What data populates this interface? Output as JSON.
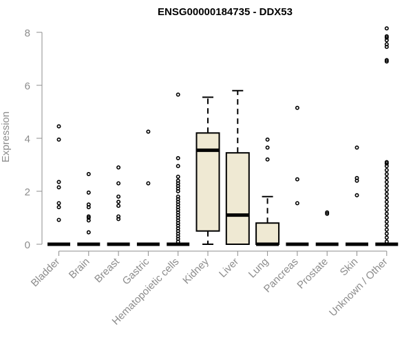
{
  "chart_data": {
    "type": "box",
    "title": "ENSG00000184735 - DDX53",
    "xlabel": "",
    "ylabel": "Expression",
    "ylim": [
      0,
      8.2
    ],
    "yticks": [
      0,
      2,
      4,
      6,
      8
    ],
    "box_fill": "#efe9d3",
    "categories": [
      "Bladder",
      "Brain",
      "Breast",
      "Gastric",
      "Hematopoietic cells",
      "Kidney",
      "Liver",
      "Lung",
      "Pancreas",
      "Prostate",
      "Skin",
      "Unknown / Other"
    ],
    "boxes": [
      {
        "name": "Bladder",
        "whisker_low": 0,
        "q1": 0,
        "median": 0,
        "q3": 0,
        "whisker_high": 0,
        "outliers": [
          0.92,
          1.4,
          1.55,
          2.15,
          2.35,
          3.95,
          4.45
        ]
      },
      {
        "name": "Brain",
        "whisker_low": 0,
        "q1": 0,
        "median": 0,
        "q3": 0,
        "whisker_high": 0,
        "outliers": [
          0.45,
          0.9,
          1.0,
          1.05,
          1.4,
          1.5,
          1.95,
          2.65
        ]
      },
      {
        "name": "Breast",
        "whisker_low": 0,
        "q1": 0,
        "median": 0,
        "q3": 0,
        "whisker_high": 0,
        "outliers": [
          0.95,
          1.05,
          1.45,
          1.6,
          1.8,
          2.3,
          2.9
        ]
      },
      {
        "name": "Gastric",
        "whisker_low": 0,
        "q1": 0,
        "median": 0,
        "q3": 0,
        "whisker_high": 0,
        "outliers": [
          2.3,
          4.25
        ]
      },
      {
        "name": "Hematopoietic cells",
        "whisker_low": 0,
        "q1": 0,
        "median": 0,
        "q3": 0,
        "whisker_high": 0,
        "outliers": [
          0.1,
          0.2,
          0.3,
          0.4,
          0.5,
          0.6,
          0.7,
          0.8,
          0.9,
          1.0,
          1.1,
          1.2,
          1.3,
          1.4,
          1.5,
          1.6,
          1.7,
          1.8,
          2.0,
          2.1,
          2.2,
          2.3,
          2.4,
          2.55,
          2.95,
          3.25,
          5.65
        ]
      },
      {
        "name": "Kidney",
        "whisker_low": 0,
        "q1": 0.5,
        "median": 3.55,
        "q3": 4.2,
        "whisker_high": 5.55,
        "outliers": []
      },
      {
        "name": "Liver",
        "whisker_low": 0,
        "q1": 0,
        "median": 1.1,
        "q3": 3.45,
        "whisker_high": 5.8,
        "outliers": []
      },
      {
        "name": "Lung",
        "whisker_low": 0,
        "q1": 0,
        "median": 0,
        "q3": 0.8,
        "whisker_high": 1.8,
        "outliers": [
          3.2,
          3.65,
          3.95
        ]
      },
      {
        "name": "Pancreas",
        "whisker_low": 0,
        "q1": 0,
        "median": 0,
        "q3": 0,
        "whisker_high": 0,
        "outliers": [
          1.55,
          2.45,
          5.15
        ]
      },
      {
        "name": "Prostate",
        "whisker_low": 0,
        "q1": 0,
        "median": 0,
        "q3": 0,
        "whisker_high": 0,
        "outliers": [
          1.15,
          1.2
        ]
      },
      {
        "name": "Skin",
        "whisker_low": 0,
        "q1": 0,
        "median": 0,
        "q3": 0,
        "whisker_high": 0,
        "outliers": [
          1.85,
          2.4,
          2.5,
          3.65
        ]
      },
      {
        "name": "Unknown / Other",
        "whisker_low": 0,
        "q1": 0,
        "median": 0,
        "q3": 0,
        "whisker_high": 0,
        "outliers": [
          0.1,
          0.25,
          0.4,
          0.55,
          0.7,
          0.85,
          1.0,
          1.15,
          1.3,
          1.45,
          1.6,
          1.75,
          1.9,
          2.05,
          2.2,
          2.35,
          2.5,
          2.65,
          2.8,
          2.95,
          3.05,
          3.1,
          6.9,
          6.95,
          7.45,
          7.55,
          7.7,
          7.8,
          7.85,
          8.15
        ]
      }
    ]
  }
}
